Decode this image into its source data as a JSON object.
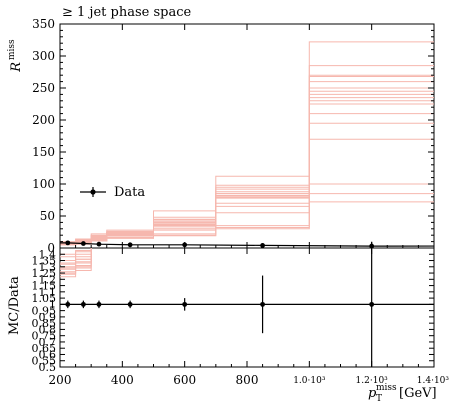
{
  "chart_data": [
    {
      "type": "line",
      "panel": "main",
      "title": "≥ 1 jet phase space",
      "ylabel": "R",
      "ylabel_sup": "miss",
      "xlim": [
        200,
        1400
      ],
      "ylim": [
        0,
        350
      ],
      "yticks": [
        "0",
        "50",
        "100",
        "150",
        "200",
        "250",
        "300",
        "350"
      ],
      "bins": [
        200,
        250,
        300,
        350,
        500,
        700,
        1000,
        1400
      ],
      "mc_variations": [
        [
          8,
          10,
          16,
          22,
          35,
          78,
          225
        ],
        [
          7,
          11,
          18,
          24,
          40,
          85,
          245
        ],
        [
          6,
          9,
          15,
          21,
          33,
          70,
          210
        ],
        [
          8,
          12,
          19,
          25,
          44,
          92,
          260
        ],
        [
          7,
          10,
          17,
          23,
          38,
          82,
          235
        ],
        [
          6,
          9,
          14,
          20,
          30,
          65,
          195
        ],
        [
          9,
          13,
          20,
          26,
          48,
          98,
          268
        ],
        [
          8,
          11,
          17,
          24,
          42,
          88,
          250
        ],
        [
          7,
          10,
          16,
          22,
          36,
          80,
          230
        ],
        [
          10,
          14,
          22,
          28,
          58,
          112,
          322
        ],
        [
          6,
          8,
          13,
          19,
          28,
          55,
          170
        ],
        [
          5,
          7,
          12,
          17,
          22,
          35,
          100
        ],
        [
          5,
          7,
          11,
          16,
          20,
          32,
          85
        ],
        [
          5,
          6,
          11,
          15,
          19,
          30,
          72
        ],
        [
          8,
          11,
          18,
          24,
          40,
          85,
          270
        ],
        [
          7,
          10,
          16,
          22,
          37,
          79,
          240
        ],
        [
          8,
          12,
          19,
          25,
          45,
          95,
          285
        ]
      ],
      "data_x": [
        225,
        275,
        325,
        425,
        600,
        850,
        1200
      ],
      "data_y": [
        8,
        7,
        6,
        5,
        5,
        4,
        3
      ],
      "legend": [
        "Data"
      ],
      "legend_placement": "center-left"
    },
    {
      "type": "line",
      "panel": "ratio",
      "ylabel": "MC/Data",
      "xlabel": "p_T^miss [GeV]",
      "xlabel_main": "p",
      "xlabel_sub": "T",
      "xlabel_sup": "miss",
      "xlabel_unit": "[GeV]",
      "xlim": [
        200,
        1400
      ],
      "ylim": [
        0.5,
        1.45
      ],
      "yticks": [
        "0.5",
        "0.55",
        "0.6",
        "0.65",
        "0.7",
        "0.75",
        "0.8",
        "0.85",
        "0.9",
        "0.95",
        "1",
        "1.05",
        "1.1",
        "1.15",
        "1.2",
        "1.25",
        "1.3",
        "1.35",
        "1.4"
      ],
      "xticks": [
        "200",
        "400",
        "600",
        "800",
        "1.0·10³",
        "1.2·10³",
        "1.4·10³"
      ],
      "ratio_bins_shown": [
        200,
        250,
        300
      ],
      "ratio_variations": [
        [
          1.25,
          1.3
        ],
        [
          1.28,
          1.33
        ],
        [
          1.22,
          1.27
        ],
        [
          1.32,
          1.36
        ],
        [
          1.3,
          1.38
        ],
        [
          1.35,
          1.4
        ],
        [
          1.26,
          1.31
        ],
        [
          1.38,
          1.42
        ],
        [
          1.24,
          1.29
        ],
        [
          1.33,
          1.36
        ],
        [
          1.4,
          1.43
        ],
        [
          1.29,
          1.34
        ]
      ],
      "data_x": [
        225,
        275,
        325,
        425,
        600,
        850,
        1200
      ],
      "data_y": [
        1,
        1,
        1,
        1,
        1,
        1,
        1
      ],
      "data_err": [
        0.03,
        0.03,
        0.03,
        0.03,
        0.05,
        0.23,
        0.5
      ]
    }
  ],
  "colors": {
    "mc": "#f6b7ae",
    "data": "#000000"
  }
}
